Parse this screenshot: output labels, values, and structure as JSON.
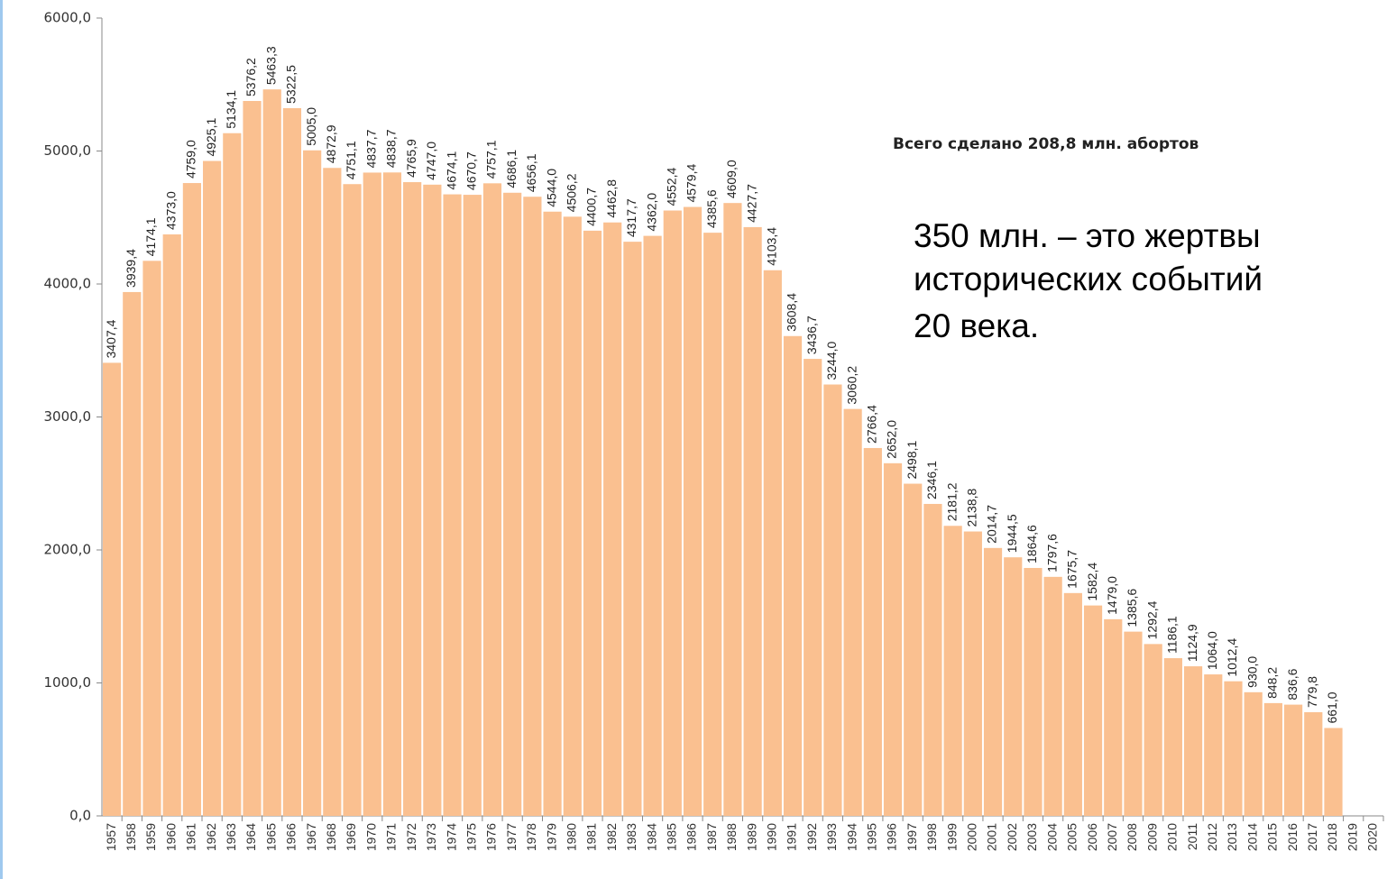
{
  "chart_data": {
    "type": "bar",
    "annotations": [
      "Всего сделано 208,8 млн. абортов",
      [
        "350 млн. – это жертвы",
        "исторических событий",
        "20 века."
      ]
    ],
    "categories": [
      "1957",
      "1958",
      "1959",
      "1960",
      "1961",
      "1962",
      "1963",
      "1964",
      "1965",
      "1966",
      "1967",
      "1968",
      "1969",
      "1970",
      "1971",
      "1972",
      "1973",
      "1974",
      "1975",
      "1976",
      "1977",
      "1978",
      "1979",
      "1980",
      "1981",
      "1982",
      "1983",
      "1984",
      "1985",
      "1986",
      "1987",
      "1988",
      "1989",
      "1990",
      "1991",
      "1992",
      "1993",
      "1994",
      "1995",
      "1996",
      "1997",
      "1998",
      "1999",
      "2000",
      "2001",
      "2002",
      "2003",
      "2004",
      "2005",
      "2006",
      "2007",
      "2008",
      "2009",
      "2010",
      "2011",
      "2012",
      "2013",
      "2014",
      "2015",
      "2016",
      "2017",
      "2018",
      "2019",
      "2020"
    ],
    "values": [
      3407.4,
      3939.4,
      4174.1,
      4373.0,
      4759.0,
      4925.1,
      5134.1,
      5376.2,
      5463.3,
      5322.5,
      5005.0,
      4872.9,
      4751.1,
      4837.7,
      4838.7,
      4765.9,
      4747.0,
      4674.1,
      4670.7,
      4757.1,
      4686.1,
      4656.1,
      4544.0,
      4506.2,
      4400.7,
      4462.8,
      4317.7,
      4362.0,
      4552.4,
      4579.4,
      4385.6,
      4609.0,
      4427.7,
      4103.4,
      3608.4,
      3436.7,
      3244.0,
      3060.2,
      2766.4,
      2652.0,
      2498.1,
      2346.1,
      2181.2,
      2138.8,
      2014.7,
      1944.5,
      1864.6,
      1797.6,
      1675.7,
      1582.4,
      1479.0,
      1385.6,
      1292.4,
      1186.1,
      1124.9,
      1064.0,
      1012.4,
      930.0,
      848.2,
      836.6,
      779.8,
      661.0,
      null,
      null
    ],
    "value_labels": [
      "3407,4",
      "3939,4",
      "4174,1",
      "4373,0",
      "4759,0",
      "4925,1",
      "5134,1",
      "5376,2",
      "5463,3",
      "5322,5",
      "5005,0",
      "4872,9",
      "4751,1",
      "4837,7",
      "4838,7",
      "4765,9",
      "4747,0",
      "4674,1",
      "4670,7",
      "4757,1",
      "4686,1",
      "4656,1",
      "4544,0",
      "4506,2",
      "4400,7",
      "4462,8",
      "4317,7",
      "4362,0",
      "4552,4",
      "4579,4",
      "4385,6",
      "4609,0",
      "4427,7",
      "4103,4",
      "3608,4",
      "3436,7",
      "3244,0",
      "3060,2",
      "2766,4",
      "2652,0",
      "2498,1",
      "2346,1",
      "2181,2",
      "2138,8",
      "2014,7",
      "1944,5",
      "1864,6",
      "1797,6",
      "1675,7",
      "1582,4",
      "1479,0",
      "1385,6",
      "1292,4",
      "1186,1",
      "1124,9",
      "1064,0",
      "1012,4",
      "930,0",
      "848,2",
      "836,6",
      "779,8",
      "661,0",
      null,
      null
    ],
    "color": "#fac090",
    "ylim": [
      0,
      6000
    ],
    "yticks": [
      {
        "value": 0,
        "label": "0,0"
      },
      {
        "value": 1000,
        "label": "1000,0"
      },
      {
        "value": 2000,
        "label": "2000,0"
      },
      {
        "value": 3000,
        "label": "3000,0"
      },
      {
        "value": 4000,
        "label": "4000,0"
      },
      {
        "value": 5000,
        "label": "5000,0"
      },
      {
        "value": 6000,
        "label": "6000,0"
      }
    ]
  }
}
